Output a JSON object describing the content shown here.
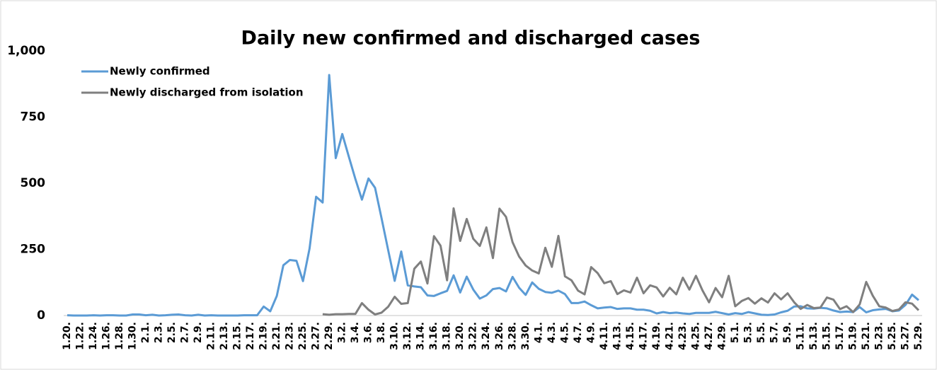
{
  "chart_data": {
    "type": "line",
    "title": "Daily new confirmed and discharged cases",
    "categories": [
      "1.20.",
      null,
      "1.22.",
      null,
      "1.24.",
      null,
      "1.26.",
      null,
      "1.28.",
      null,
      "1.30.",
      null,
      "2.1.",
      null,
      "2.3.",
      null,
      "2.5.",
      null,
      "2.7.",
      null,
      "2.9.",
      null,
      "2.11.",
      null,
      "2.13.",
      null,
      "2.15.",
      null,
      "2.17.",
      null,
      "2.19.",
      null,
      "2.21.",
      null,
      "2.23.",
      null,
      "2.25.",
      null,
      "2.27.",
      null,
      "2.29.",
      null,
      "3.2.",
      null,
      "3.4.",
      null,
      "3.6.",
      null,
      "3.8.",
      null,
      "3.10.",
      null,
      "3.12.",
      null,
      "3.14.",
      null,
      "3.16.",
      null,
      "3.18.",
      null,
      "3.20.",
      null,
      "3.22.",
      null,
      "3.24.",
      null,
      "3.26.",
      null,
      "3.28.",
      null,
      "3.30.",
      null,
      "4.1.",
      null,
      "4.3.",
      null,
      "4.5.",
      null,
      "4.7.",
      null,
      "4.9.",
      null,
      "4.11.",
      null,
      "4.13.",
      null,
      "4.15.",
      null,
      "4.17.",
      null,
      "4.19.",
      null,
      "4.21.",
      null,
      "4.23.",
      null,
      "4.25.",
      null,
      "4.27.",
      null,
      "4.29.",
      null,
      "5.1.",
      null,
      "5.3.",
      null,
      "5.5.",
      null,
      "5.7.",
      null,
      "5.9.",
      null,
      "5.11.",
      null,
      "5.13.",
      null,
      "5.15.",
      null,
      "5.17.",
      null,
      "5.19.",
      null,
      "5.21.",
      null,
      "5.23.",
      null,
      "5.25.",
      null,
      "5.27.",
      null,
      "5.29."
    ],
    "series": [
      {
        "name": "Newly confirmed",
        "color": "#5b9bd5",
        "values": [
          1,
          0,
          0,
          0,
          1,
          0,
          1,
          1,
          0,
          0,
          4,
          4,
          1,
          3,
          0,
          1,
          3,
          4,
          1,
          0,
          3,
          0,
          1,
          0,
          0,
          0,
          0,
          1,
          1,
          1,
          34,
          16,
          74,
          190,
          210,
          207,
          130,
          253,
          449,
          427,
          909,
          595,
          686,
          600,
          516,
          438,
          518,
          483,
          367,
          248,
          131,
          242,
          114,
          110,
          107,
          76,
          74,
          84,
          93,
          152,
          87,
          147,
          98,
          64,
          76,
          100,
          104,
          91,
          146,
          105,
          78,
          125,
          101,
          89,
          86,
          94,
          81,
          47,
          47,
          53,
          39,
          27,
          30,
          32,
          25,
          27,
          27,
          22,
          22,
          18,
          8,
          13,
          9,
          11,
          8,
          6,
          10,
          10,
          10,
          14,
          9,
          4,
          9,
          6,
          13,
          8,
          3,
          2,
          4,
          12,
          18,
          34,
          35,
          27,
          26,
          29,
          27,
          19,
          13,
          15,
          13,
          32,
          12,
          20,
          23,
          25,
          16,
          19,
          40,
          79,
          58
        ]
      },
      {
        "name": "Newly discharged from isolation",
        "color": "#7f7f7f",
        "values": [
          null,
          null,
          null,
          null,
          null,
          null,
          null,
          null,
          null,
          null,
          null,
          null,
          null,
          null,
          null,
          null,
          null,
          null,
          null,
          null,
          null,
          null,
          null,
          null,
          null,
          null,
          null,
          null,
          null,
          null,
          null,
          null,
          null,
          null,
          null,
          null,
          null,
          null,
          null,
          5,
          3,
          5,
          5,
          6,
          6,
          47,
          22,
          4,
          11,
          33,
          71,
          44,
          47,
          177,
          204,
          121,
          300,
          264,
          133,
          405,
          282,
          365,
          290,
          263,
          333,
          217,
          404,
          373,
          277,
          223,
          189,
          170,
          159,
          256,
          184,
          301,
          148,
          133,
          94,
          80,
          183,
          160,
          122,
          130,
          81,
          95,
          87,
          143,
          84,
          114,
          106,
          72,
          105,
          80,
          143,
          98,
          150,
          95,
          50,
          104,
          69,
          150,
          35,
          55,
          66,
          45,
          65,
          49,
          84,
          61,
          84,
          50,
          25,
          40,
          28,
          30,
          68,
          60,
          24,
          35,
          13,
          42,
          127,
          75,
          35,
          30,
          17,
          23,
          50,
          45,
          20
        ]
      }
    ],
    "ylim": [
      0,
      1000
    ],
    "yticks": [
      0,
      250,
      500,
      750,
      {
        "value": 1000,
        "label": "1,000"
      }
    ],
    "legend": "top-left"
  }
}
